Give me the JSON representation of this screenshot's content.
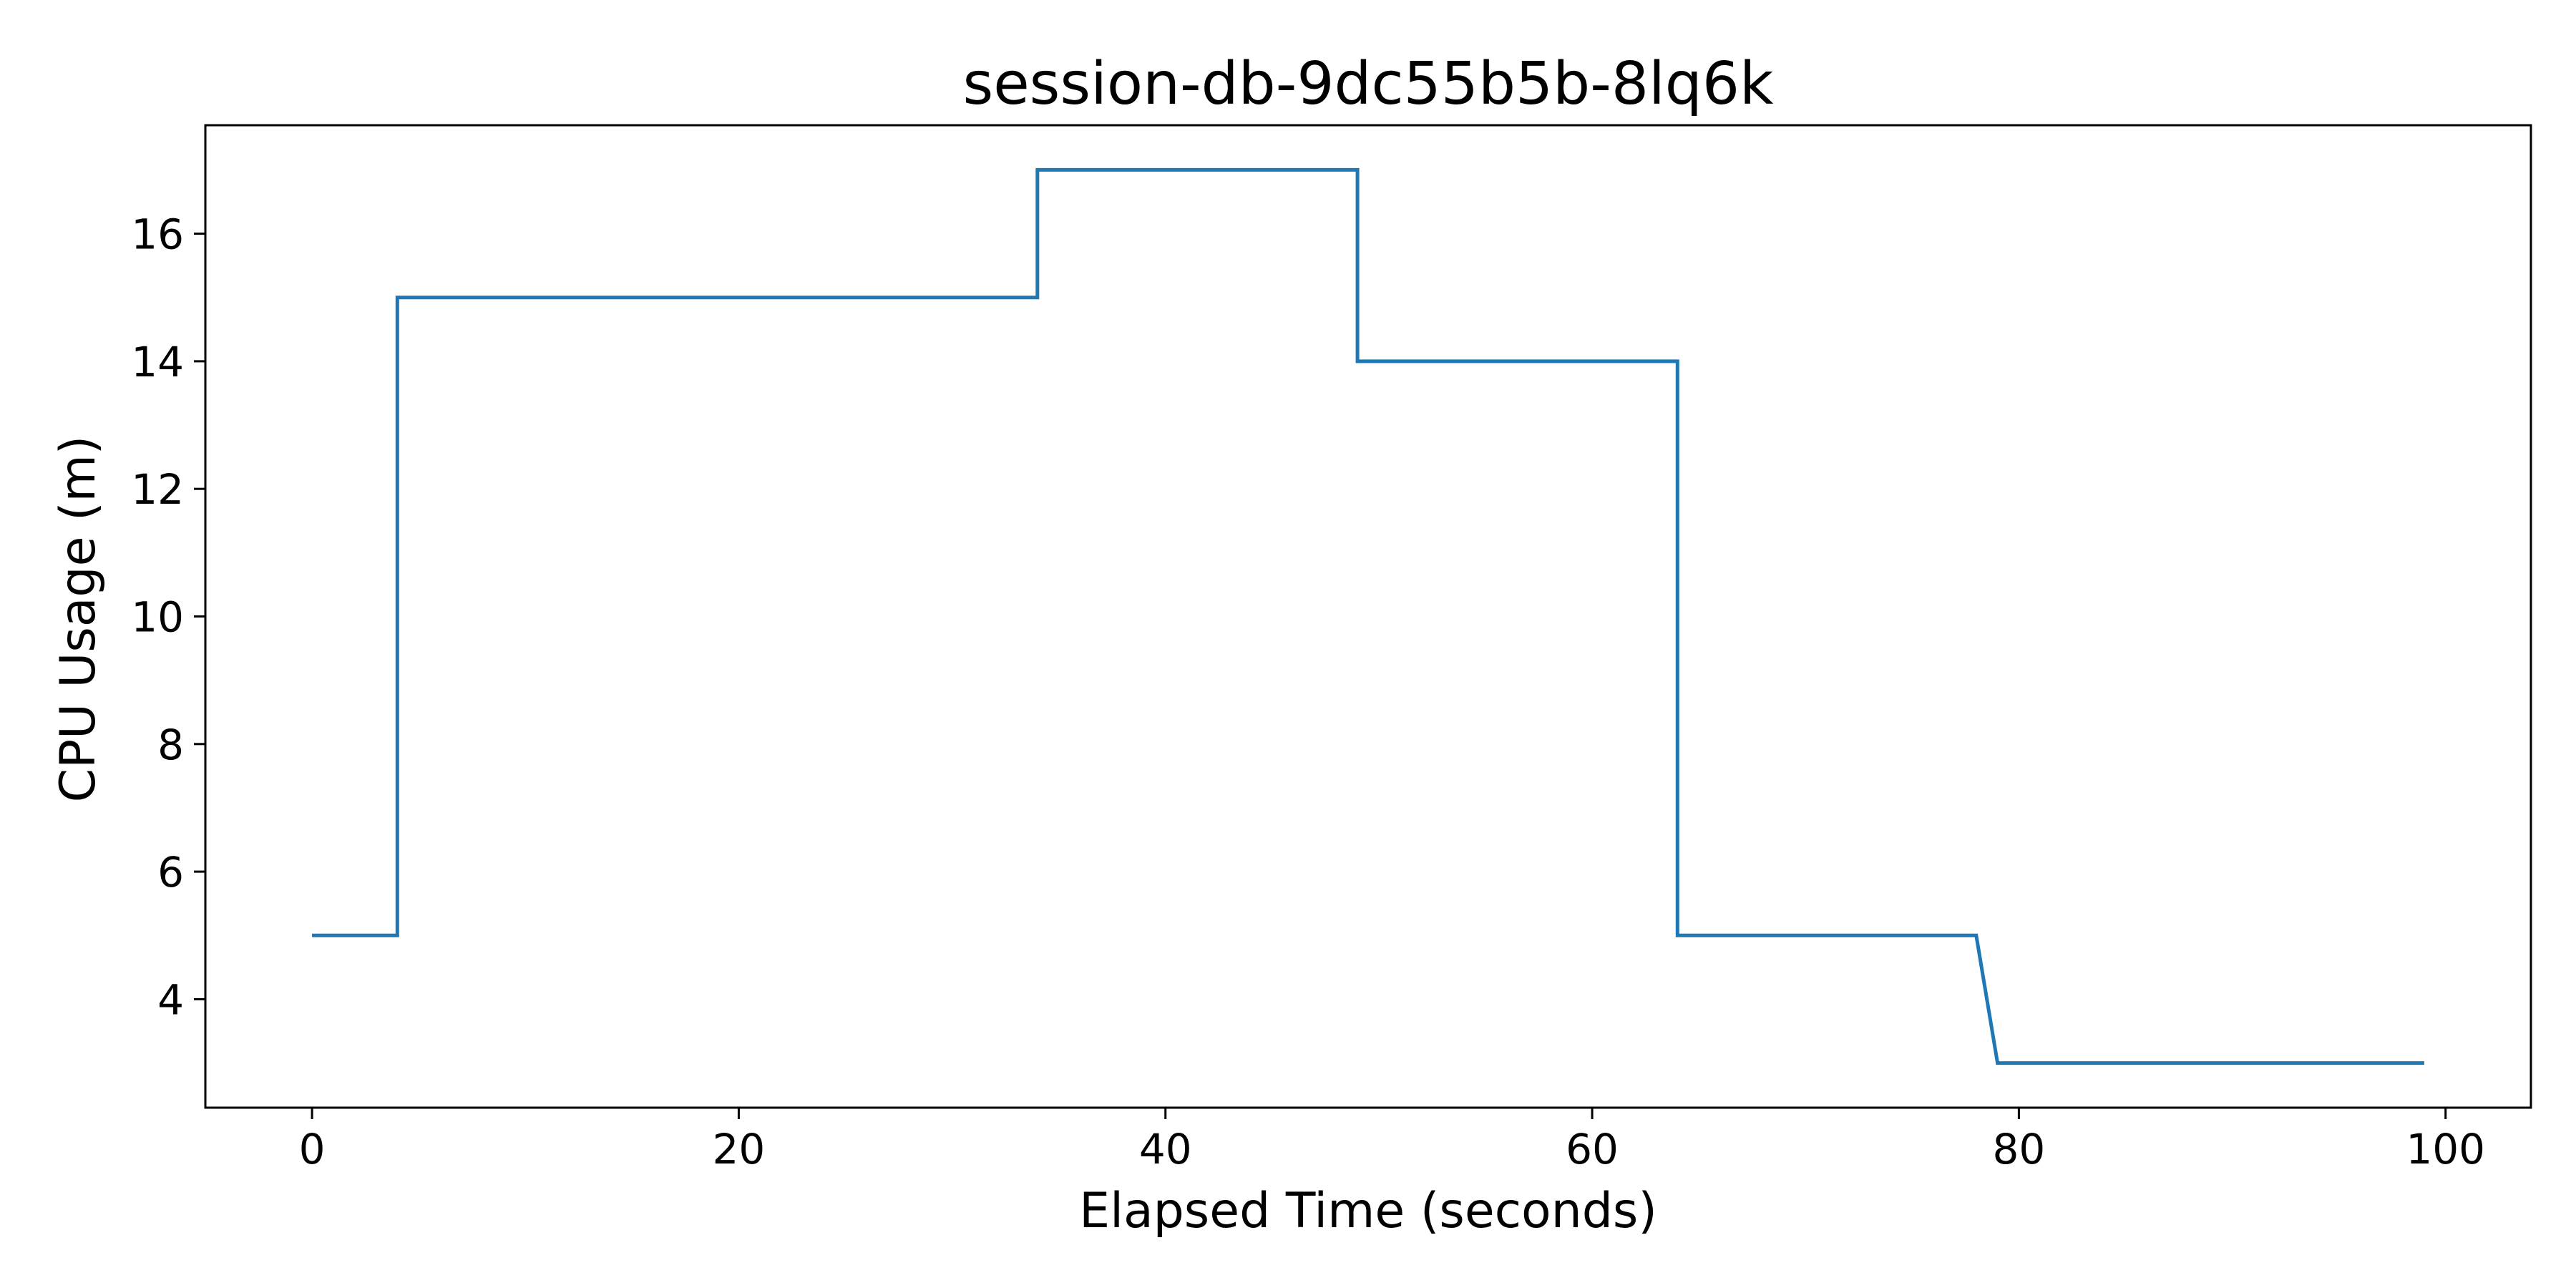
{
  "chart_data": {
    "type": "line",
    "step": true,
    "title": "session-db-9dc55b5b-8lq6k",
    "xlabel": "Elapsed Time (seconds)",
    "ylabel": "CPU Usage (m)",
    "xlim": [
      -5,
      104
    ],
    "ylim": [
      2.3,
      17.7
    ],
    "xticks": [
      0,
      20,
      40,
      60,
      80,
      100
    ],
    "yticks": [
      4,
      6,
      8,
      10,
      12,
      14,
      16
    ],
    "grid": false,
    "colors": {
      "line": "#1f77b4",
      "axes": "#000000",
      "background": "#ffffff"
    },
    "series": [
      {
        "x": [
          0,
          4,
          4,
          34,
          34,
          49,
          49,
          64,
          64,
          78,
          79,
          99
        ],
        "y": [
          5,
          5,
          15,
          15,
          17,
          17,
          14,
          14,
          5,
          5,
          3,
          3
        ]
      }
    ]
  }
}
